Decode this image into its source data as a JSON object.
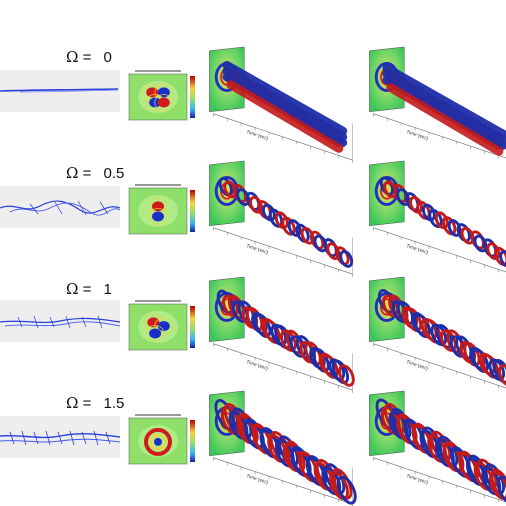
{
  "rows": [
    {
      "omega_symbol": "Ω",
      "equals": "=",
      "value": "0"
    },
    {
      "omega_symbol": "Ω",
      "equals": "=",
      "value": "0.5"
    },
    {
      "omega_symbol": "Ω",
      "equals": "=",
      "value": "1"
    },
    {
      "omega_symbol": "Ω",
      "equals": "=",
      "value": "1.5"
    }
  ],
  "axis_label": "Time (sec)",
  "colors": {
    "streak_line": "#2a3fd8",
    "iso_red": "#c41a1a",
    "iso_blue": "#1e2ea8",
    "contour_green": "#8ee06a",
    "contour_red": "#d21a1a",
    "contour_blue": "#1a2ec8"
  }
}
